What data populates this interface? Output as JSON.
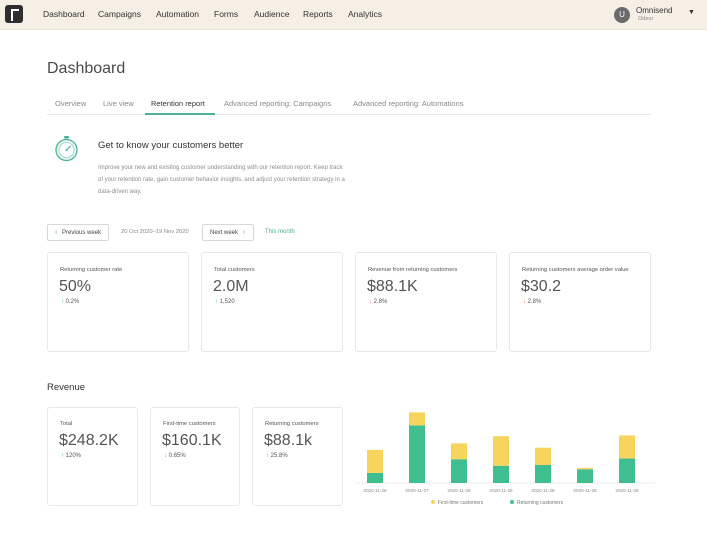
{
  "nav": {
    "items": [
      "Dashboard",
      "Campaigns",
      "Automation",
      "Forms",
      "Audience",
      "Reports",
      "Analytics"
    ],
    "user_initial": "U",
    "user_name": "Omnisend",
    "user_sub": "Odeur"
  },
  "page": {
    "title": "Dashboard"
  },
  "tabs": [
    "Overview",
    "Live view",
    "Retention report",
    "Advanced reporting: Campaigns",
    "Advanced reporting: Automations"
  ],
  "info": {
    "title": "Get to know your customers better",
    "text": "Improve your new and existing customer understanding with our retention report. Keep track of your retention rate, gain customer behavior insights, and adjust your retention strategy in a data-driven way."
  },
  "date_controls": {
    "prev_label": "Previous week",
    "date_range": "20 Oct 2020–19 Nov 2020",
    "next_label": "Next week",
    "this_month": "This month"
  },
  "metrics": [
    {
      "label": "Returning customer rate",
      "value": "50%",
      "change": "0.2%",
      "direction": "up"
    },
    {
      "label": "Total customers",
      "value": "2.0M",
      "change": "1,520",
      "direction": "up"
    },
    {
      "label": "Revenue from returning customers",
      "value": "$88.1K",
      "change": "2.8%",
      "direction": "down"
    },
    {
      "label": "Returning customers average order value",
      "value": "$30.2",
      "change": "2.8%",
      "direction": "down"
    }
  ],
  "revenue": {
    "title": "Revenue",
    "cards": [
      {
        "label": "Total",
        "value": "$248.2K",
        "change": "120%",
        "direction": "up"
      },
      {
        "label": "First-time customers",
        "value": "$160.1K",
        "change": "0.65%",
        "direction": "down"
      },
      {
        "label": "Returning customers",
        "value": "$88.1k",
        "change": "25.8%",
        "direction": "up"
      }
    ]
  },
  "colors": {
    "accent": "#4ab09a",
    "first_time": "#f7d55c",
    "returning": "#3fbf8f",
    "down": "#e86f5a"
  },
  "chart_data": {
    "type": "bar",
    "stacked": true,
    "categories": [
      "2020-11-26",
      "2020-11-27",
      "2020-11-28",
      "2020-11-28",
      "2020-11-28",
      "2020-11-28",
      "2020-11-28"
    ],
    "series": [
      {
        "name": "Returning customers",
        "color": "#3fbf8f",
        "values": [
          14,
          80,
          33,
          24,
          25,
          19,
          34
        ]
      },
      {
        "name": "First-time customers",
        "color": "#f7d55c",
        "values": [
          32,
          18,
          22,
          41,
          24,
          2,
          32
        ]
      }
    ],
    "ylim": [
      0,
      100
    ],
    "grid": false,
    "legend_position": "bottom"
  }
}
